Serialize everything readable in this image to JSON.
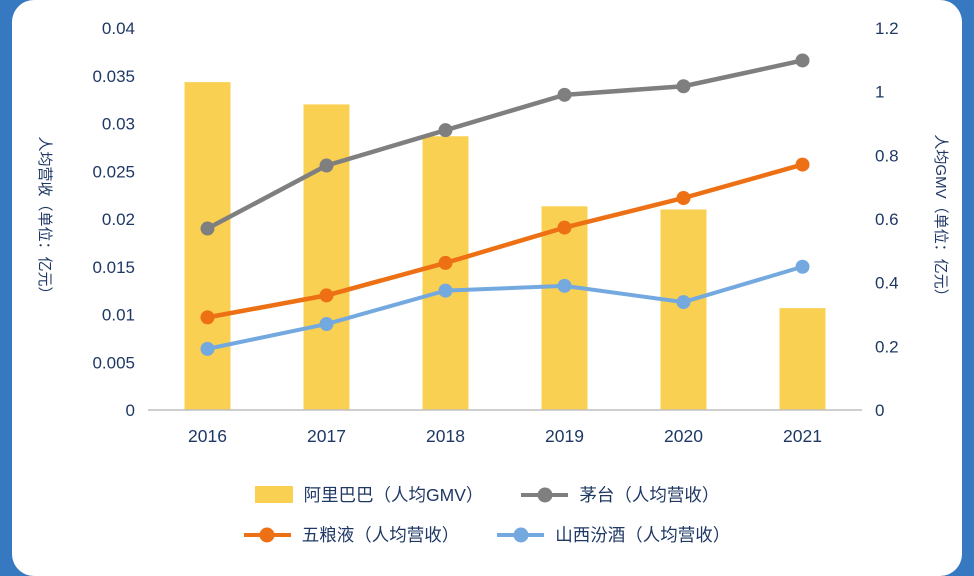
{
  "page": {
    "background_color": "#3679C0",
    "card_color": "#FFFFFF"
  },
  "chart_data": {
    "type": "bar+line combo",
    "categories": [
      "2016",
      "2017",
      "2018",
      "2019",
      "2020",
      "2021"
    ],
    "bar_series": {
      "name": "阿里巴巴（人均GMV）",
      "axis": "right",
      "color": "#FAD052",
      "values": [
        1.03,
        0.96,
        0.86,
        0.64,
        0.63,
        0.32
      ]
    },
    "line_series": [
      {
        "name": "茅台（人均营收）",
        "axis": "left",
        "color": "#7F7F7F",
        "values": [
          0.019,
          0.0256,
          0.0293,
          0.033,
          0.0339,
          0.0366
        ]
      },
      {
        "name": "五粮液（人均营收）",
        "axis": "left",
        "color": "#ED7014",
        "values": [
          0.0097,
          0.012,
          0.0154,
          0.0191,
          0.0222,
          0.0257
        ]
      },
      {
        "name": "山西汾酒（人均营收）",
        "axis": "left",
        "color": "#74A9E0",
        "values": [
          0.0064,
          0.009,
          0.0125,
          0.013,
          0.0113,
          0.015
        ]
      }
    ],
    "left_axis": {
      "title": "人均营收（单位：亿元）",
      "min": 0,
      "max": 0.04,
      "step": 0.005,
      "tick_labels": [
        "0",
        "0.005",
        "0.01",
        "0.015",
        "0.02",
        "0.025",
        "0.03",
        "0.035",
        "0.04"
      ]
    },
    "right_axis": {
      "title": "人均GMV（单位：亿元）",
      "min": 0,
      "max": 1.2,
      "step": 0.2,
      "tick_labels": [
        "0",
        "0.2",
        "0.4",
        "0.6",
        "0.8",
        "1",
        "1.2"
      ]
    },
    "legend_position": "bottom",
    "grid": false,
    "text_color": "#1F3864",
    "axis_line_color": "#BFBFBF"
  }
}
